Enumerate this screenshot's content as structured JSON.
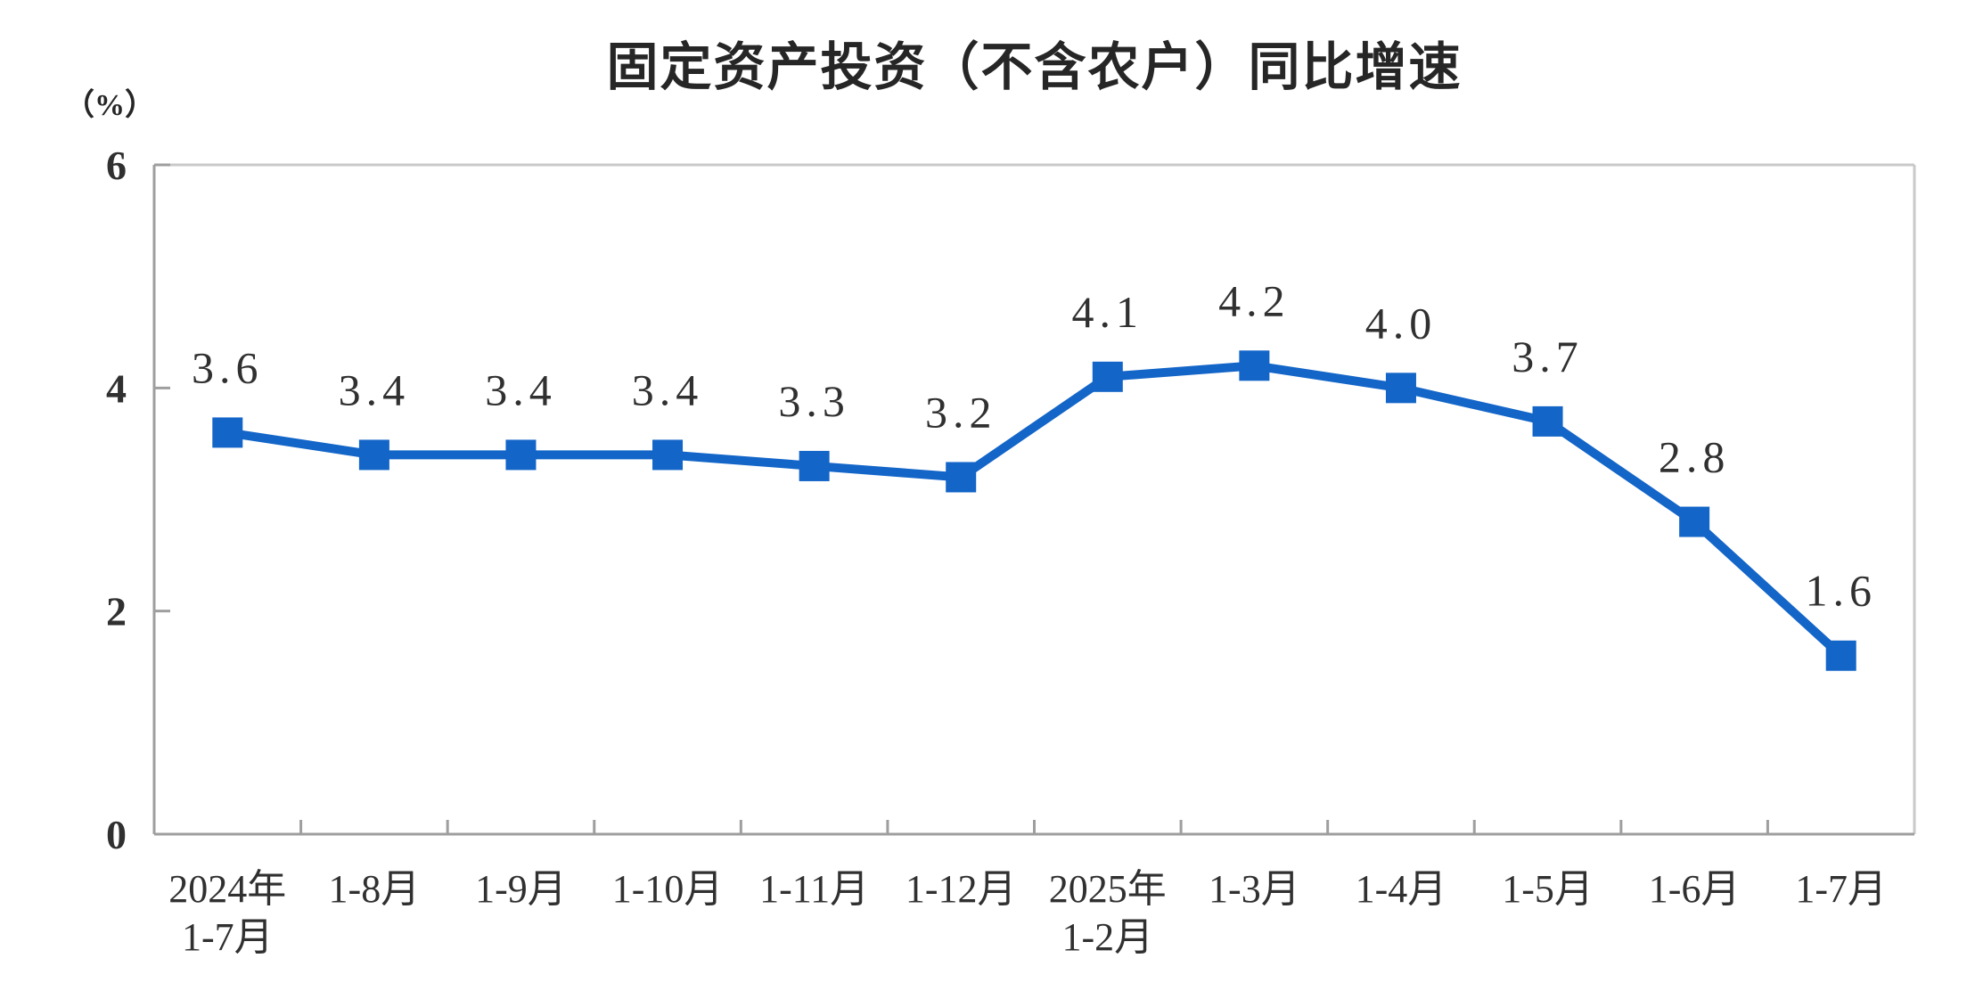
{
  "chart_data": {
    "type": "line",
    "title": "固定资产投资（不含农户）同比增速",
    "unit_label": "（%）",
    "categories": [
      [
        "2024年",
        "1-7月"
      ],
      [
        "1-8月"
      ],
      [
        "1-9月"
      ],
      [
        "1-10月"
      ],
      [
        "1-11月"
      ],
      [
        "1-12月"
      ],
      [
        "2025年",
        "1-2月"
      ],
      [
        "1-3月"
      ],
      [
        "1-4月"
      ],
      [
        "1-5月"
      ],
      [
        "1-6月"
      ],
      [
        "1-7月"
      ]
    ],
    "values": [
      3.6,
      3.4,
      3.4,
      3.4,
      3.3,
      3.2,
      4.1,
      4.2,
      4.0,
      3.7,
      2.8,
      1.6
    ],
    "point_labels": [
      "3.6",
      "3.4",
      "3.4",
      "3.4",
      "3.3",
      "3.2",
      "4.1",
      "4.2",
      "4.0",
      "3.7",
      "2.8",
      "1.6"
    ],
    "y_ticks": [
      0,
      2,
      4,
      6
    ],
    "ylim": [
      0,
      6
    ],
    "grid": false,
    "legend": "none",
    "colors": {
      "series": "#1365c8",
      "label": "#303030",
      "axis": "#9e9e9e",
      "frame": "#c9c9c9",
      "title": "#262626"
    }
  }
}
